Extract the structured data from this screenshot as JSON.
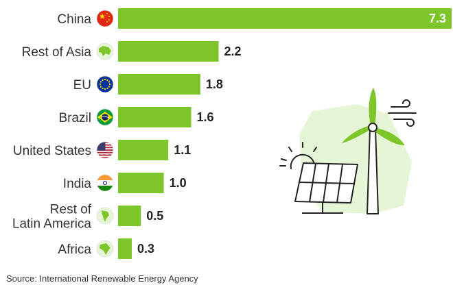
{
  "chart_data": {
    "type": "bar",
    "orientation": "horizontal",
    "categories": [
      "China",
      "Rest of Asia",
      "EU",
      "Brazil",
      "United States",
      "India",
      "Rest of Latin America",
      "Africa"
    ],
    "category_lines": [
      [
        "China"
      ],
      [
        "Rest of Asia"
      ],
      [
        "EU"
      ],
      [
        "Brazil"
      ],
      [
        "United States"
      ],
      [
        "India"
      ],
      [
        "Rest of",
        "Latin America"
      ],
      [
        "Africa"
      ]
    ],
    "values": [
      7.3,
      2.2,
      1.8,
      1.6,
      1.1,
      1.0,
      0.5,
      0.3
    ],
    "value_labels": [
      "7.3",
      "2.2",
      "1.8",
      "1.6",
      "1.1",
      "1.0",
      "0.5",
      "0.3"
    ],
    "xlim": [
      0,
      7.3
    ],
    "bar_color": "#7cc62a",
    "grid": false,
    "legend": "none"
  },
  "icons": [
    "china-flag-icon",
    "asia-map-icon",
    "eu-flag-icon",
    "brazil-flag-icon",
    "us-flag-icon",
    "india-flag-icon",
    "latin-america-map-icon",
    "africa-map-icon"
  ],
  "decoration": [
    "wind-turbine-icon",
    "solar-panel-icon",
    "sun-icon",
    "wind-lines-icon"
  ],
  "colors": {
    "accent": "#7cc62a",
    "panel_bg": "#e6f5d6"
  },
  "footer": {
    "source": "Source: International Renewable Energy Agency"
  }
}
